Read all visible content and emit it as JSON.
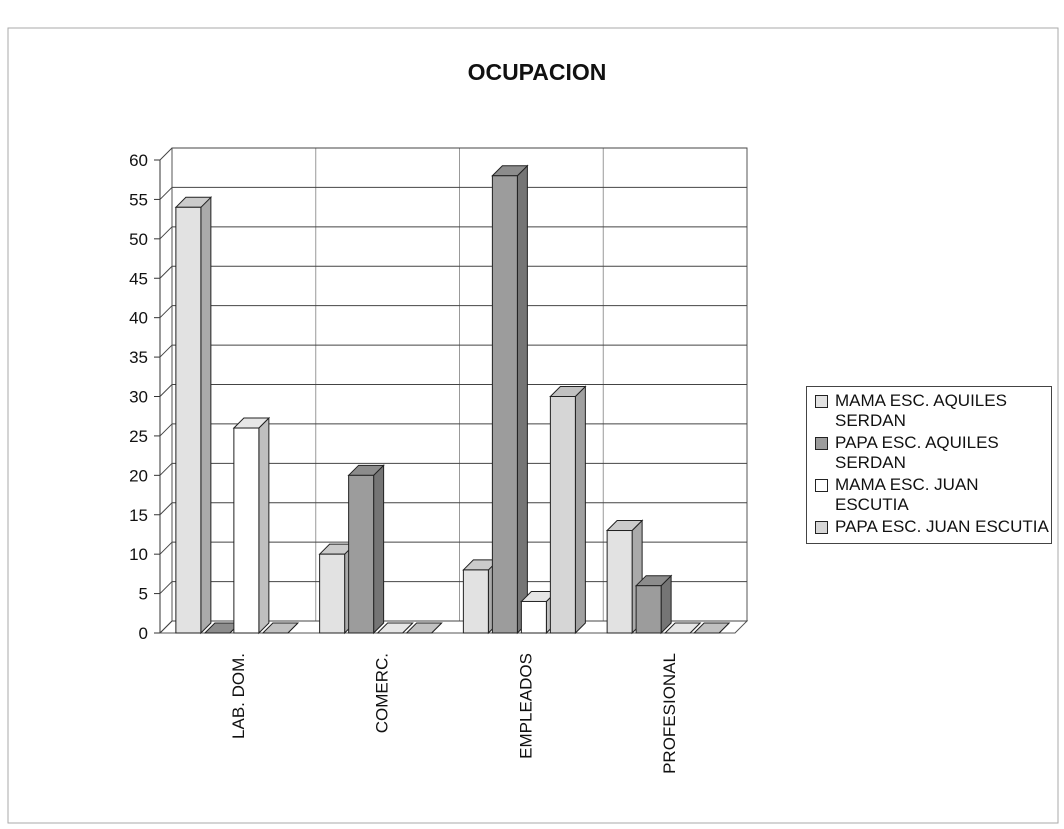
{
  "chart_data": {
    "type": "bar3d",
    "title": "OCUPACION",
    "categories": [
      "LAB. DOM.",
      "COMERC.",
      "EMPLEADOS",
      "PROFESIONAL"
    ],
    "series": [
      {
        "name": "MAMA ESC. AQUILES SERDAN",
        "color": "#e2e2e2",
        "values": [
          54,
          10,
          8,
          13
        ]
      },
      {
        "name": "PAPA ESC. AQUILES SERDAN",
        "color": "#9c9c9c",
        "values": [
          0,
          20,
          58,
          6
        ]
      },
      {
        "name": "MAMA ESC. JUAN ESCUTIA",
        "color": "#ffffff",
        "values": [
          26,
          0,
          4,
          0
        ]
      },
      {
        "name": "PAPA ESC. JUAN ESCUTIA",
        "color": "#d6d6d6",
        "values": [
          0,
          0,
          30,
          0
        ]
      }
    ],
    "ylim": [
      0,
      60
    ],
    "yticks": [
      0,
      5,
      10,
      15,
      20,
      25,
      30,
      35,
      40,
      45,
      50,
      55,
      60
    ],
    "grid": true,
    "legend": "right"
  }
}
